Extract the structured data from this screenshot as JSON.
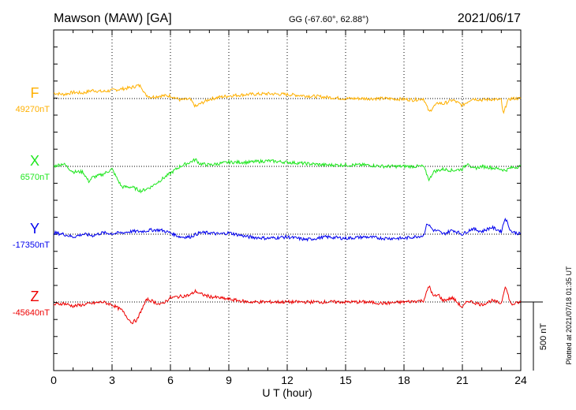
{
  "header": {
    "station": "Mawson (MAW)  [GA]",
    "coords": "GG (-67.60°,  62.88°)",
    "date": "2021/06/17"
  },
  "plotted_note": "Plotted at 2021/07/18 01:35 UT",
  "scale_label": "500 nT",
  "colors": {
    "F": "#ffb000",
    "X": "#1ee61e",
    "Y": "#0000ee",
    "Z": "#ee0000"
  },
  "chart_data": {
    "type": "line",
    "title": "Mawson (MAW)  [GA]",
    "xlabel": "U T (hour)",
    "ylabel": "",
    "xlim": [
      0,
      24
    ],
    "xticks": [
      0,
      3,
      6,
      9,
      12,
      15,
      18,
      21,
      24
    ],
    "grid": true,
    "scale_bar_nT": 500,
    "series": [
      {
        "name": "F",
        "baseline_label": "49270nT",
        "color": "#ffb000",
        "x": [
          0,
          0.5,
          1,
          1.5,
          2,
          2.5,
          3,
          3.5,
          4,
          4.3,
          4.5,
          4.7,
          5,
          5.5,
          6,
          6.5,
          7,
          7.3,
          7.5,
          8,
          8.5,
          9,
          10,
          11,
          12,
          13,
          14,
          15,
          16,
          17,
          18,
          18.5,
          19,
          19.3,
          19.5,
          19.8,
          20,
          20.5,
          21,
          21.3,
          21.5,
          22,
          22.5,
          23,
          23.1,
          23.3,
          23.5,
          24
        ],
        "values": [
          40,
          30,
          45,
          40,
          60,
          50,
          60,
          70,
          80,
          95,
          90,
          30,
          10,
          20,
          20,
          -10,
          -5,
          -60,
          -40,
          -5,
          10,
          20,
          30,
          35,
          30,
          20,
          10,
          0,
          0,
          0,
          -5,
          -10,
          0,
          -100,
          -60,
          -30,
          -40,
          -10,
          -50,
          -20,
          0,
          -10,
          -5,
          -10,
          -120,
          -20,
          0,
          0
        ]
      },
      {
        "name": "X",
        "baseline_label": "6570nT",
        "color": "#1ee61e",
        "x": [
          0,
          0.5,
          1,
          1.5,
          1.8,
          2,
          2.5,
          3,
          3.3,
          3.5,
          4,
          4.5,
          5,
          5.5,
          6,
          6.5,
          7,
          7.3,
          7.5,
          8,
          8.5,
          9,
          10,
          11,
          12,
          13,
          14,
          15,
          16,
          17,
          18,
          19,
          19.3,
          19.5,
          20,
          20.5,
          21,
          21.3,
          21.5,
          22,
          22.5,
          23,
          23.2,
          23.5,
          24
        ],
        "values": [
          0,
          20,
          -40,
          -40,
          -110,
          -80,
          -60,
          -20,
          -100,
          -150,
          -150,
          -180,
          -150,
          -100,
          -50,
          0,
          30,
          50,
          20,
          10,
          20,
          30,
          30,
          40,
          30,
          20,
          10,
          10,
          10,
          0,
          0,
          0,
          -100,
          -40,
          -20,
          -30,
          -20,
          30,
          -20,
          0,
          -10,
          -20,
          -30,
          -10,
          0
        ]
      },
      {
        "name": "Y",
        "baseline_label": "-17350nT",
        "color": "#0000ee",
        "x": [
          0,
          0.5,
          1,
          1.5,
          2,
          2.5,
          3,
          3.5,
          4,
          4.5,
          5,
          5.5,
          6,
          6.5,
          7,
          7.5,
          8,
          8.5,
          9,
          10,
          11,
          12,
          13,
          14,
          15,
          16,
          17,
          18,
          19,
          19.2,
          19.5,
          19.8,
          20,
          20.5,
          21,
          21.5,
          22,
          22.5,
          23,
          23.2,
          23.5,
          24
        ],
        "values": [
          10,
          0,
          -20,
          0,
          -10,
          10,
          5,
          10,
          20,
          20,
          30,
          30,
          10,
          -20,
          -20,
          10,
          10,
          0,
          10,
          -20,
          -30,
          -20,
          -40,
          -20,
          -30,
          -20,
          -30,
          -30,
          -10,
          80,
          30,
          20,
          0,
          30,
          0,
          40,
          20,
          50,
          20,
          120,
          20,
          0
        ]
      },
      {
        "name": "Z",
        "baseline_label": "-45640nT",
        "color": "#ee0000",
        "x": [
          0,
          0.5,
          1,
          1.5,
          2,
          2.5,
          3,
          3.5,
          4,
          4.3,
          4.5,
          4.8,
          5,
          5.5,
          6,
          6.5,
          7,
          7.3,
          7.5,
          8,
          8.5,
          9,
          10,
          11,
          12,
          13,
          14,
          15,
          16,
          17,
          18,
          19,
          19.3,
          19.5,
          19.8,
          20,
          20.5,
          21,
          21.3,
          21.5,
          22,
          22.5,
          23,
          23.2,
          23.5,
          24
        ],
        "values": [
          -20,
          -10,
          -30,
          -20,
          -10,
          0,
          -20,
          -60,
          -150,
          -130,
          -60,
          20,
          10,
          -20,
          30,
          40,
          50,
          80,
          60,
          40,
          30,
          20,
          0,
          0,
          0,
          0,
          0,
          0,
          0,
          -10,
          0,
          10,
          120,
          40,
          50,
          10,
          30,
          -40,
          10,
          0,
          -20,
          10,
          -10,
          120,
          -20,
          0
        ]
      }
    ]
  }
}
